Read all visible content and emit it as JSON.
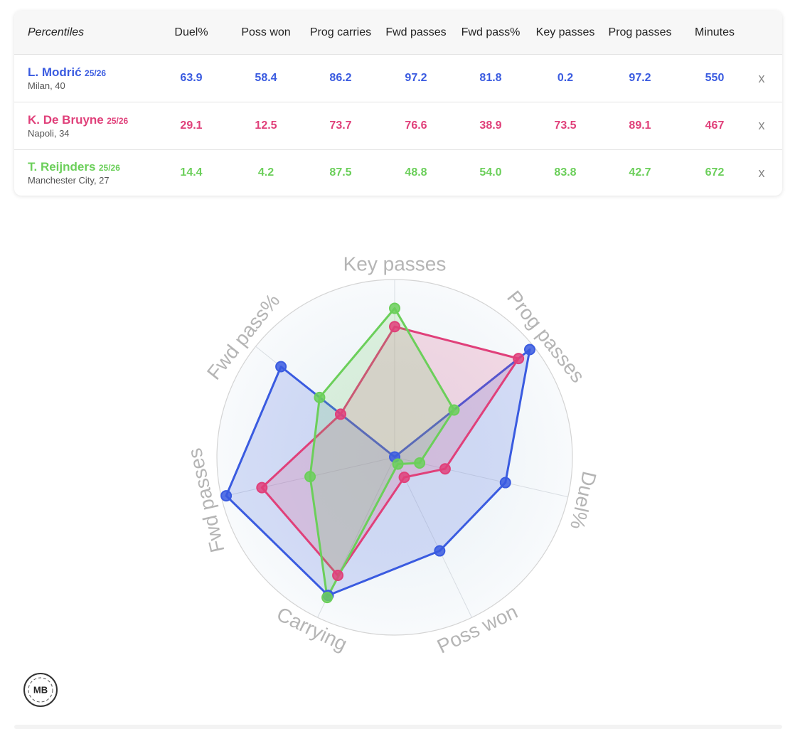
{
  "table": {
    "header": [
      "Percentiles",
      "Duel%",
      "Poss won",
      "Prog carries",
      "Fwd passes",
      "Fwd pass%",
      "Key passes",
      "Prog passes",
      "Minutes"
    ],
    "rows": [
      {
        "name": "L. Modrić",
        "season": "25/26",
        "info": "Milan, 40",
        "cells": [
          "63.9",
          "58.4",
          "86.2",
          "97.2",
          "81.8",
          "0.2",
          "97.2",
          "550"
        ],
        "remove": "x"
      },
      {
        "name": "K. De Bruyne",
        "season": "25/26",
        "info": "Napoli, 34",
        "cells": [
          "29.1",
          "12.5",
          "73.7",
          "76.6",
          "38.9",
          "73.5",
          "89.1",
          "467"
        ],
        "remove": "x"
      },
      {
        "name": "T. Reijnders",
        "season": "25/26",
        "info": "Manchester City, 27",
        "cells": [
          "14.4",
          "4.2",
          "87.5",
          "48.8",
          "54.0",
          "83.8",
          "42.7",
          "672"
        ],
        "remove": "x"
      }
    ]
  },
  "chart_data": {
    "type": "radar",
    "axes": [
      "Key passes",
      "Prog passes",
      "Duel%",
      "Poss won",
      "Carrying",
      "Fwd passes",
      "Fwd pass%"
    ],
    "rlim": [
      0,
      100
    ],
    "series": [
      {
        "color": "#3a5be0",
        "values": [
          0.2,
          97.2,
          63.9,
          58.4,
          86.2,
          97.2,
          81.8
        ]
      },
      {
        "color": "#e0407a",
        "values": [
          73.5,
          89.1,
          29.1,
          12.5,
          73.7,
          76.6,
          38.9
        ]
      },
      {
        "color": "#6bcf5a",
        "values": [
          83.8,
          42.7,
          14.4,
          4.2,
          87.5,
          48.8,
          54.0
        ]
      }
    ]
  },
  "logo": "MB"
}
